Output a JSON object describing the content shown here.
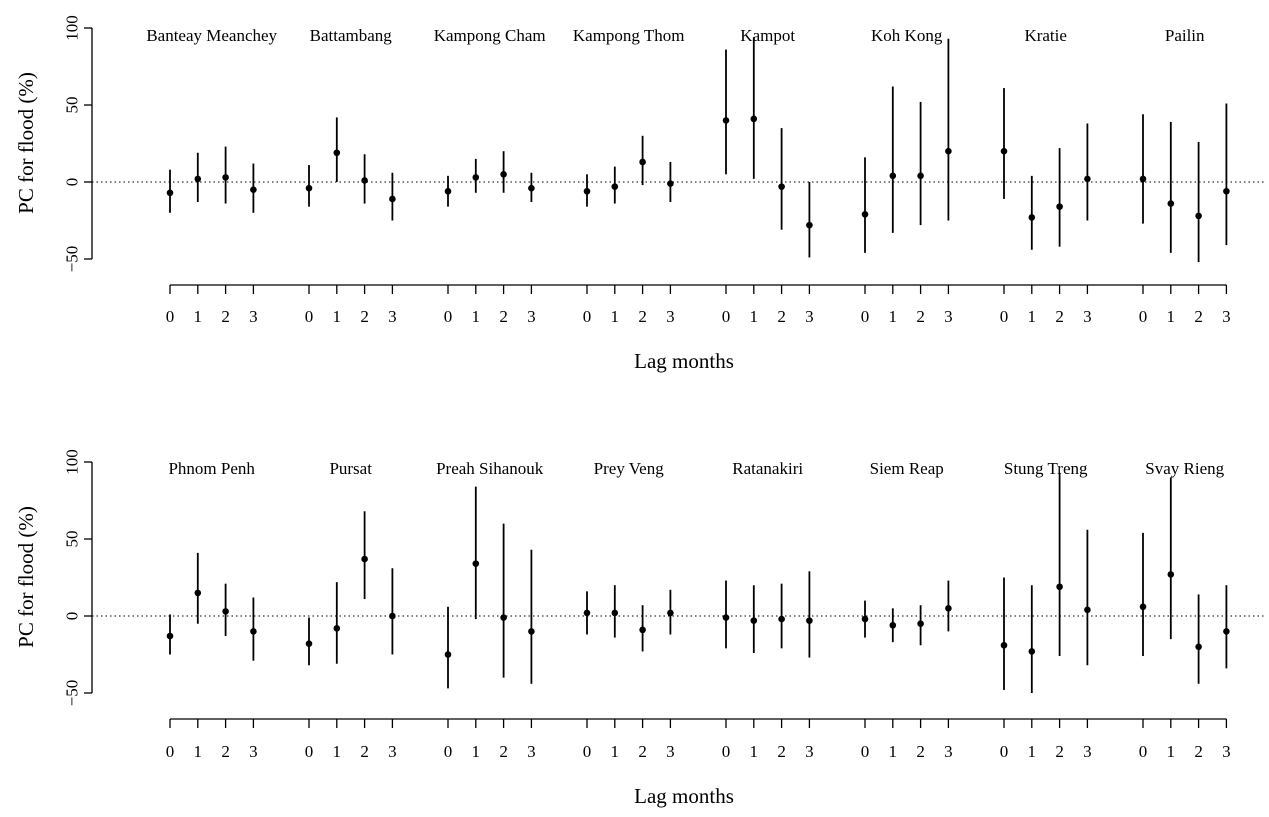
{
  "chart_data": [
    {
      "type": "scatter",
      "variant": "point-estimate-with-error-bars",
      "ylabel": "PC for flood (%)",
      "xlabel": "Lag months",
      "ylim": [
        -50,
        100
      ],
      "yticks": [
        -50,
        0,
        50,
        100
      ],
      "reference_line": {
        "y": 0,
        "style": "dotted"
      },
      "lags": [
        "0",
        "1",
        "2",
        "3"
      ],
      "groups": [
        {
          "name": "Banteay Meanchey",
          "estimates": [
            -7,
            2,
            3,
            -5
          ],
          "lower": [
            -20,
            -13,
            -14,
            -20
          ],
          "upper": [
            8,
            19,
            23,
            12
          ]
        },
        {
          "name": "Battambang",
          "estimates": [
            -4,
            19,
            1,
            -11
          ],
          "lower": [
            -16,
            0,
            -14,
            -25
          ],
          "upper": [
            11,
            42,
            18,
            6
          ]
        },
        {
          "name": "Kampong Cham",
          "estimates": [
            -6,
            3,
            5,
            -4
          ],
          "lower": [
            -16,
            -7,
            -7,
            -13
          ],
          "upper": [
            4,
            15,
            20,
            6
          ]
        },
        {
          "name": "Kampong Thom",
          "estimates": [
            -6,
            -3,
            13,
            -1
          ],
          "lower": [
            -16,
            -14,
            -2,
            -13
          ],
          "upper": [
            5,
            10,
            30,
            13
          ]
        },
        {
          "name": "Kampot",
          "estimates": [
            40,
            41,
            -3,
            -28
          ],
          "lower": [
            5,
            2,
            -31,
            -49
          ],
          "upper": [
            86,
            94,
            35,
            0
          ]
        },
        {
          "name": "Koh Kong",
          "estimates": [
            -21,
            4,
            4,
            20
          ],
          "lower": [
            -46,
            -33,
            -28,
            -25
          ],
          "upper": [
            16,
            62,
            52,
            93
          ]
        },
        {
          "name": "Kratie",
          "estimates": [
            20,
            -23,
            -16,
            2
          ],
          "lower": [
            -11,
            -44,
            -42,
            -25
          ],
          "upper": [
            61,
            4,
            22,
            38
          ]
        },
        {
          "name": "Pailin",
          "estimates": [
            2,
            -14,
            -22,
            -6
          ],
          "lower": [
            -27,
            -46,
            -52,
            -41
          ],
          "upper": [
            44,
            39,
            26,
            51
          ]
        }
      ]
    },
    {
      "type": "scatter",
      "variant": "point-estimate-with-error-bars",
      "ylabel": "PC for flood (%)",
      "xlabel": "Lag months",
      "ylim": [
        -50,
        100
      ],
      "yticks": [
        -50,
        0,
        50,
        100
      ],
      "reference_line": {
        "y": 0,
        "style": "dotted"
      },
      "lags": [
        "0",
        "1",
        "2",
        "3"
      ],
      "groups": [
        {
          "name": "Phnom Penh",
          "estimates": [
            -13,
            15,
            3,
            -10
          ],
          "lower": [
            -25,
            -5,
            -13,
            -29
          ],
          "upper": [
            1,
            41,
            21,
            12
          ]
        },
        {
          "name": "Pursat",
          "estimates": [
            -18,
            -8,
            37,
            0
          ],
          "lower": [
            -32,
            -31,
            11,
            -25
          ],
          "upper": [
            -1,
            22,
            68,
            31
          ]
        },
        {
          "name": "Preah Sihanouk",
          "estimates": [
            -25,
            34,
            -1,
            -10
          ],
          "lower": [
            -47,
            -2,
            -40,
            -44
          ],
          "upper": [
            6,
            84,
            60,
            43
          ]
        },
        {
          "name": "Prey Veng",
          "estimates": [
            2,
            2,
            -9,
            2
          ],
          "lower": [
            -12,
            -14,
            -23,
            -12
          ],
          "upper": [
            16,
            20,
            7,
            17
          ]
        },
        {
          "name": "Ratanakiri",
          "estimates": [
            -1,
            -3,
            -2,
            -3
          ],
          "lower": [
            -21,
            -24,
            -21,
            -27
          ],
          "upper": [
            23,
            20,
            21,
            29
          ]
        },
        {
          "name": "Siem Reap",
          "estimates": [
            -2,
            -6,
            -5,
            5
          ],
          "lower": [
            -14,
            -17,
            -19,
            -10
          ],
          "upper": [
            10,
            5,
            7,
            23
          ]
        },
        {
          "name": "Stung Treng",
          "estimates": [
            -19,
            -23,
            19,
            4
          ],
          "lower": [
            -48,
            -50,
            -26,
            -32
          ],
          "upper": [
            25,
            20,
            93,
            56
          ]
        },
        {
          "name": "Svay Rieng",
          "estimates": [
            6,
            27,
            -20,
            -10
          ],
          "lower": [
            -26,
            -15,
            -44,
            -34
          ],
          "upper": [
            54,
            90,
            14,
            20
          ]
        }
      ]
    }
  ]
}
